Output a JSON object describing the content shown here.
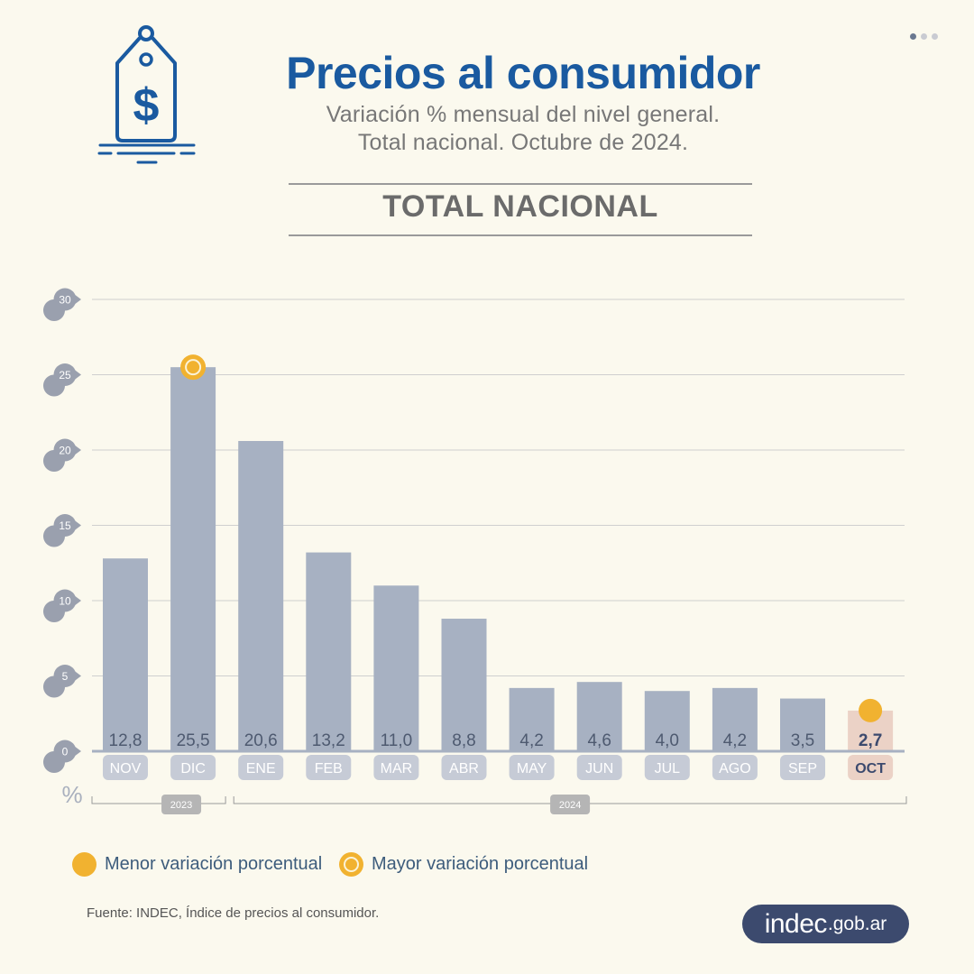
{
  "header": {
    "title": "Precios al consumidor",
    "subtitle_line1": "Variación % mensual del nivel general.",
    "subtitle_line2": "Total nacional. Octubre de 2024.",
    "section": "TOTAL NACIONAL"
  },
  "chart_data": {
    "type": "bar",
    "categories": [
      "NOV",
      "DIC",
      "ENE",
      "FEB",
      "MAR",
      "ABR",
      "MAY",
      "JUN",
      "JUL",
      "AGO",
      "SEP",
      "OCT"
    ],
    "values": [
      12.8,
      25.5,
      20.6,
      13.2,
      11.0,
      8.8,
      4.2,
      4.6,
      4.0,
      4.2,
      3.5,
      2.7
    ],
    "value_labels": [
      "12,8",
      "25,5",
      "20,6",
      "13,2",
      "11,0",
      "8,8",
      "4,2",
      "4,6",
      "4,0",
      "4,2",
      "3,5",
      "2,7"
    ],
    "ylim": [
      0,
      30
    ],
    "yticks": [
      "0",
      "5",
      "10",
      "15",
      "20",
      "25",
      "30"
    ],
    "ylabel": "%",
    "years": [
      {
        "label": "2023",
        "categories": [
          "NOV",
          "DIC"
        ]
      },
      {
        "label": "2024",
        "categories": [
          "ENE",
          "FEB",
          "MAR",
          "ABR",
          "MAY",
          "JUN",
          "JUL",
          "AGO",
          "SEP",
          "OCT"
        ]
      }
    ],
    "highest_index": 1,
    "lowest_index": 11,
    "grid": true,
    "colors": {
      "bar": "#a7b1c2",
      "highlight_bar": "#ebd2c6",
      "label_tab": "#c6cbd6",
      "highlight_tab": "#ebd2c6",
      "marker": "#f1b230",
      "axis_badge": "#9aa0ae",
      "year_badge": "#b5b5b5"
    }
  },
  "legend": {
    "lowest": "Menor variación porcentual",
    "highest": "Mayor variación porcentual"
  },
  "footer": {
    "source": "Fuente: INDEC, Índice de precios al consumidor.",
    "brand_name": "indec",
    "brand_domain": ".gob.ar"
  }
}
